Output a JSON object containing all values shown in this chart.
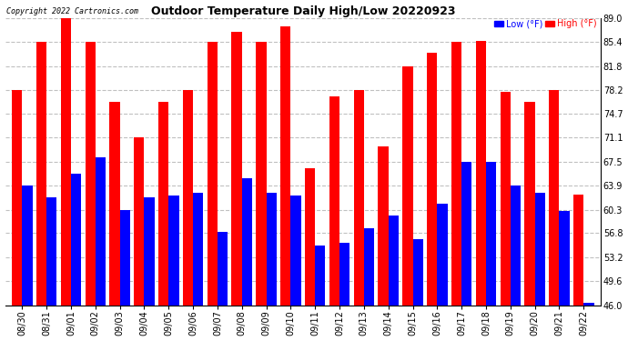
{
  "title": "Outdoor Temperature Daily High/Low 20220923",
  "copyright": "Copyright 2022 Cartronics.com",
  "dates": [
    "08/30",
    "08/31",
    "09/01",
    "09/02",
    "09/03",
    "09/04",
    "09/05",
    "09/06",
    "09/07",
    "09/08",
    "09/09",
    "09/10",
    "09/11",
    "09/12",
    "09/13",
    "09/14",
    "09/15",
    "09/16",
    "09/17",
    "09/18",
    "09/19",
    "09/20",
    "09/21",
    "09/22"
  ],
  "high": [
    78.2,
    85.4,
    89.0,
    85.4,
    76.5,
    71.1,
    76.5,
    78.2,
    85.4,
    86.9,
    85.4,
    87.8,
    66.5,
    77.2,
    78.2,
    69.8,
    81.8,
    83.8,
    85.4,
    85.6,
    77.9,
    76.5,
    78.2,
    62.6
  ],
  "low": [
    63.9,
    62.2,
    65.7,
    68.2,
    60.3,
    62.2,
    62.4,
    62.8,
    57.0,
    65.0,
    62.8,
    62.4,
    55.0,
    55.4,
    57.6,
    59.5,
    55.9,
    61.2,
    67.5,
    67.5,
    63.9,
    62.8,
    60.1,
    46.4
  ],
  "ylim_min": 46.0,
  "ylim_max": 89.0,
  "yticks": [
    46.0,
    49.6,
    53.2,
    56.8,
    60.3,
    63.9,
    67.5,
    71.1,
    74.7,
    78.2,
    81.8,
    85.4,
    89.0
  ],
  "color_high": "#ff0000",
  "color_low": "#0000ff",
  "background_color": "#ffffff",
  "grid_color": "#c0c0c0",
  "title_fontsize": 9,
  "tick_fontsize": 7
}
